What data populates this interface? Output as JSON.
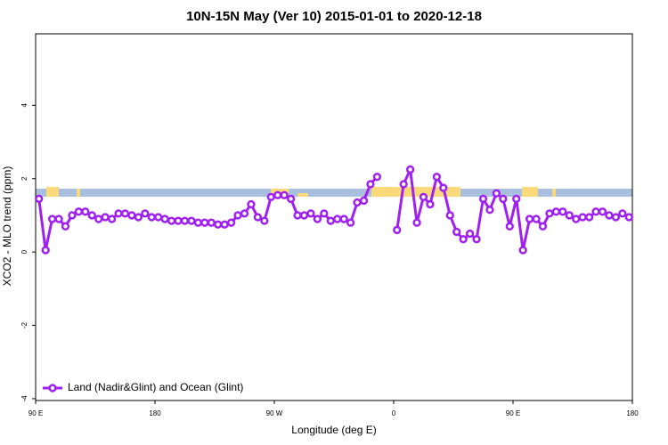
{
  "chart_data": {
    "type": "line",
    "title": "10N-15N May (Ver 10)   2015-01-01 to 2020-12-18",
    "xlabel": "Longitude (deg E)",
    "ylabel": "XCO2 - MLO trend (ppm)",
    "xlim": [
      90,
      540
    ],
    "ylim": [
      -4.05,
      5.95
    ],
    "xticks": [
      {
        "value": 90,
        "label": "90 E"
      },
      180,
      {
        "value": 270,
        "label": "90 W"
      },
      {
        "value": 360,
        "label": "0"
      },
      {
        "value": 450,
        "label": "90 E"
      },
      {
        "value": 540,
        "label": "180"
      }
    ],
    "yticks": [
      -4,
      -2,
      0,
      2,
      4
    ],
    "legend": "bottom-left",
    "x": [
      92.5,
      97.5,
      102.5,
      107.5,
      112.5,
      117.5,
      122.5,
      127.5,
      132.5,
      137.5,
      142.5,
      147.5,
      152.5,
      157.5,
      162.5,
      167.5,
      172.5,
      177.5,
      182.5,
      187.5,
      192.5,
      197.5,
      202.5,
      207.5,
      212.5,
      217.5,
      222.5,
      227.5,
      232.5,
      237.5,
      242.5,
      247.5,
      252.5,
      257.5,
      262.5,
      267.5,
      272.5,
      277.5,
      282.5,
      287.5,
      292.5,
      297.5,
      302.5,
      307.5,
      312.5,
      317.5,
      322.5,
      327.5,
      332.5,
      337.5,
      342.5,
      347.5,
      352.5,
      357.5,
      362.5,
      367.5,
      372.5,
      377.5,
      382.5,
      387.5,
      392.5,
      397.5,
      402.5,
      407.5,
      412.5,
      417.5,
      422.5,
      427.5,
      432.5,
      437.5,
      442.5,
      447.5,
      452.5,
      457.5,
      462.5,
      467.5,
      472.5,
      477.5,
      482.5,
      487.5,
      492.5,
      497.5,
      502.5,
      507.5,
      512.5,
      517.5,
      522.5,
      527.5,
      532.5,
      537.5
    ],
    "series": [
      {
        "name": "Land (Nadir&Glint) and Ocean (Glint)",
        "color": "#a020f0",
        "values": [
          1.45,
          0.05,
          0.9,
          0.9,
          0.7,
          1.0,
          1.1,
          1.1,
          1.0,
          0.9,
          0.95,
          0.9,
          1.05,
          1.05,
          1.0,
          0.95,
          1.05,
          0.95,
          0.95,
          0.9,
          0.85,
          0.85,
          0.85,
          0.85,
          0.8,
          0.8,
          0.8,
          0.75,
          0.75,
          0.8,
          1.0,
          1.05,
          1.3,
          0.95,
          0.85,
          1.5,
          1.55,
          1.55,
          1.45,
          1.0,
          1.0,
          1.05,
          0.9,
          1.05,
          0.85,
          0.9,
          0.9,
          0.8,
          1.35,
          1.4,
          1.85,
          2.05,
          null,
          null,
          0.6,
          1.85,
          2.25,
          0.8,
          1.5,
          1.3,
          2.05,
          1.75,
          1.0,
          0.55,
          0.35,
          0.5,
          0.35,
          1.45,
          1.15,
          1.6,
          1.45,
          0.7,
          1.45,
          0.05,
          0.9,
          0.9,
          0.7,
          1.05,
          1.1,
          1.1,
          1.0,
          0.9,
          0.95,
          0.95,
          1.1,
          1.1,
          1.0,
          0.95,
          1.05,
          0.95
        ]
      }
    ]
  }
}
